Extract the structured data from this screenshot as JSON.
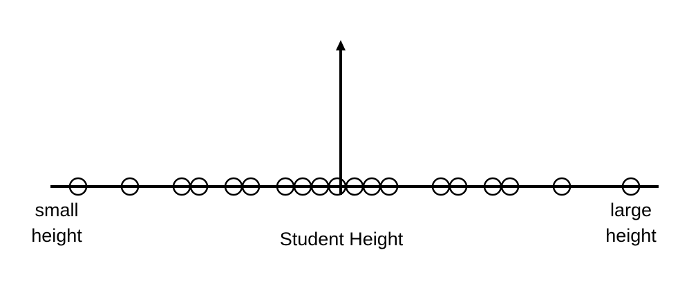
{
  "diagram": {
    "axis_label": "Student Height",
    "left_label": [
      "small",
      "height"
    ],
    "right_label": [
      "large",
      "height"
    ],
    "line_color": "#000000",
    "marker_fill": "#ffffff",
    "center_marker": "upward-arrow-at-mean",
    "points": [
      -15.2,
      -12.2,
      -9.2,
      -8.2,
      -6.2,
      -5.2,
      -3.2,
      -2.2,
      -1.2,
      -0.2,
      0.8,
      1.8,
      2.8,
      5.8,
      6.8,
      8.8,
      9.8,
      12.8,
      16.8
    ]
  }
}
